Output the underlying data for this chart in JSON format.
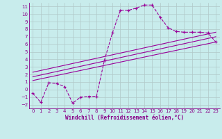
{
  "xlabel": "Windchill (Refroidissement éolien,°C)",
  "bg_color": "#c8ecec",
  "line_color": "#990099",
  "grid_color": "#b0c8c8",
  "xlim": [
    -0.5,
    23.5
  ],
  "ylim": [
    -2.5,
    11.5
  ],
  "xticks": [
    0,
    1,
    2,
    3,
    4,
    5,
    6,
    7,
    8,
    9,
    10,
    11,
    12,
    13,
    14,
    15,
    16,
    17,
    18,
    19,
    20,
    21,
    22,
    23
  ],
  "yticks": [
    -2,
    -1,
    0,
    1,
    2,
    3,
    4,
    5,
    6,
    7,
    8,
    9,
    10,
    11
  ],
  "curve1_x": [
    0,
    1,
    2,
    3,
    4,
    5,
    6,
    7,
    8,
    9,
    10,
    11,
    12,
    13,
    14,
    15,
    16,
    17,
    18,
    19,
    20,
    21,
    22,
    23
  ],
  "curve1_y": [
    -0.5,
    -1.7,
    0.9,
    0.8,
    0.4,
    -1.8,
    -1.0,
    -0.9,
    -0.9,
    3.9,
    7.5,
    10.5,
    10.5,
    10.8,
    11.2,
    11.2,
    9.6,
    8.2,
    7.7,
    7.6,
    7.6,
    7.6,
    7.5,
    6.3
  ],
  "line1_x": [
    0,
    23
  ],
  "line1_y": [
    1.2,
    6.3
  ],
  "line2_x": [
    0,
    23
  ],
  "line2_y": [
    1.7,
    7.0
  ],
  "line3_x": [
    0,
    23
  ],
  "line3_y": [
    2.3,
    7.6
  ],
  "tick_color": "#880088",
  "tick_fontsize": 5.0,
  "xlabel_fontsize": 5.5
}
